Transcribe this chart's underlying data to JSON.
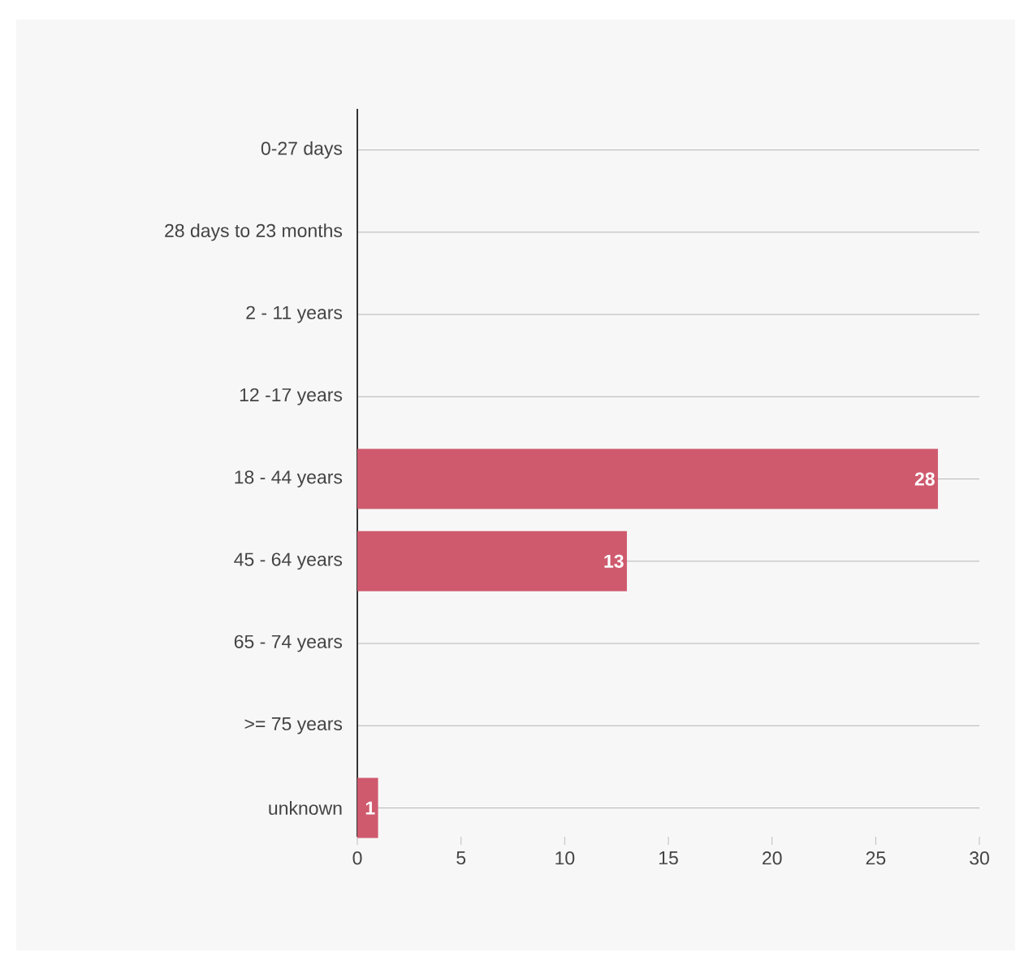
{
  "chart_data": {
    "type": "bar",
    "orientation": "horizontal",
    "categories": [
      "0-27 days",
      "28 days to 23 months",
      "2 - 11 years",
      "12 -17 years",
      "18 - 44 years",
      "45 - 64 years",
      "65 - 74 years",
      ">= 75 years",
      "unknown"
    ],
    "values": [
      0,
      0,
      0,
      0,
      28,
      13,
      0,
      0,
      1
    ],
    "value_labels": [
      null,
      null,
      null,
      null,
      "28",
      "13",
      null,
      null,
      "1"
    ],
    "color": "#cf5a6e",
    "xlim": [
      0,
      30
    ],
    "xticks": [
      0,
      5,
      10,
      15,
      20,
      25,
      30
    ],
    "grid": "y"
  }
}
